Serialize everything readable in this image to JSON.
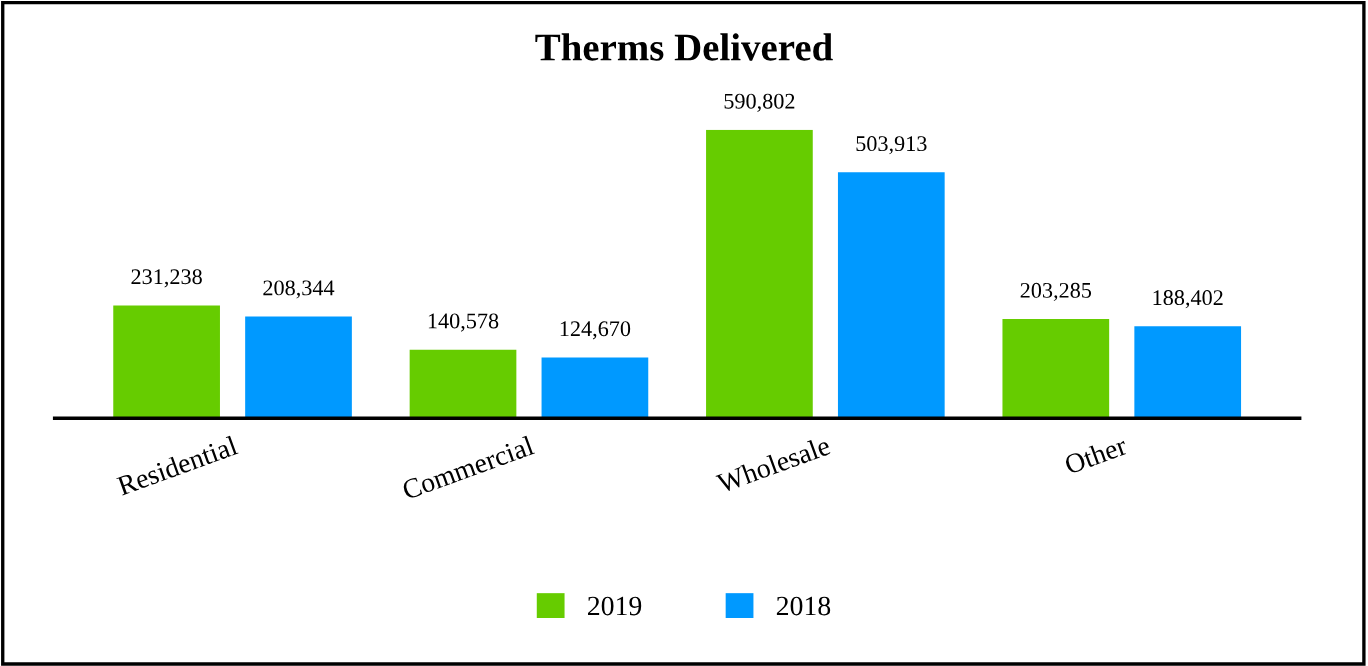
{
  "chart_data": {
    "type": "bar",
    "title": "Therms Delivered",
    "categories": [
      "Residential",
      "Commercial",
      "Wholesale",
      "Other"
    ],
    "series": [
      {
        "name": "2019",
        "color": "#66cc00",
        "values": [
          231238,
          140578,
          590802,
          203285
        ],
        "value_labels": [
          "231,238",
          "140,578",
          "590,802",
          "203,285"
        ]
      },
      {
        "name": "2018",
        "color": "#0099ff",
        "values": [
          208344,
          124670,
          503913,
          188402
        ],
        "value_labels": [
          "208,344",
          "124,670",
          "503,913",
          "188,402"
        ]
      }
    ],
    "legend": "bottom",
    "grid": false,
    "tick_labels": "x"
  }
}
